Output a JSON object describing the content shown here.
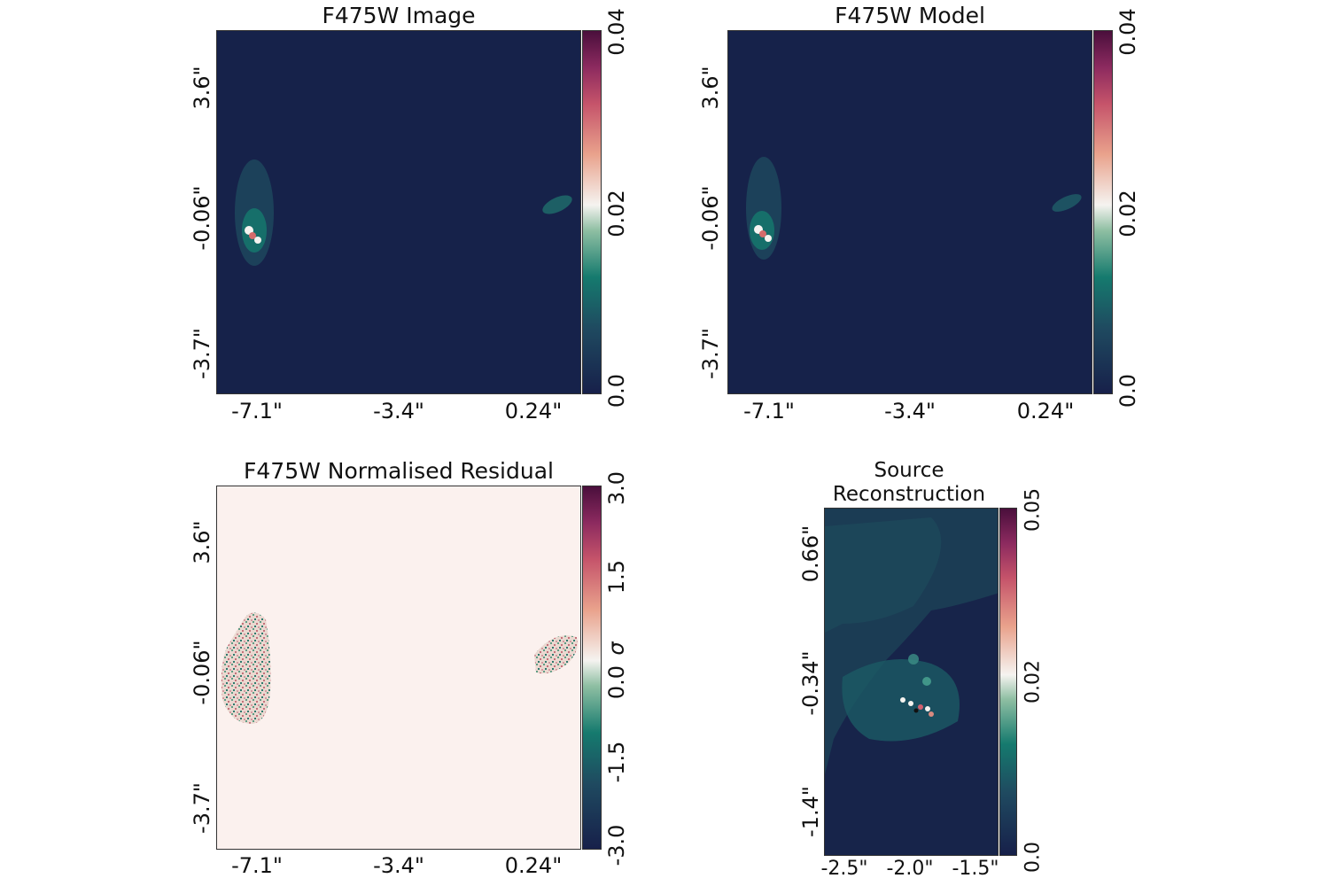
{
  "chart_data": [
    {
      "type": "heatmap",
      "title": "F475W Image",
      "x_ticks": [
        "-7.1\"",
        "-3.4\"",
        "0.24\""
      ],
      "y_ticks": [
        "3.6\"",
        "-0.06\"",
        "-3.7\""
      ],
      "colorbar_ticks": [
        "0.04",
        "0.02",
        "0.0"
      ],
      "colorbar_range": [
        0.0,
        0.04
      ],
      "background": "#16224a"
    },
    {
      "type": "heatmap",
      "title": "F475W Model",
      "x_ticks": [
        "-7.1\"",
        "-3.4\"",
        "0.24\""
      ],
      "y_ticks": [
        "3.6\"",
        "-0.06\"",
        "-3.7\""
      ],
      "colorbar_ticks": [
        "0.04",
        "0.02",
        "0.0"
      ],
      "colorbar_range": [
        0.0,
        0.04
      ],
      "background": "#16224a"
    },
    {
      "type": "heatmap",
      "title": "F475W Normalised Residual",
      "x_ticks": [
        "-7.1\"",
        "-3.4\"",
        "0.24\""
      ],
      "y_ticks": [
        "3.6\"",
        "-0.06\"",
        "-3.7\""
      ],
      "colorbar_ticks": [
        "3.0",
        "1.5",
        "0.0",
        "-1.5",
        "-3.0"
      ],
      "colorbar_unit": "σ",
      "colorbar_range": [
        -3.0,
        3.0
      ],
      "background": "#fbf1ee"
    },
    {
      "type": "heatmap",
      "title": "Source Reconstruction",
      "x_ticks": [
        "-2.5\"",
        "-2.0\"",
        "-1.5\""
      ],
      "y_ticks": [
        "0.66\"",
        "-0.34\"",
        "-1.4\""
      ],
      "colorbar_ticks": [
        "0.05",
        "0.02",
        "0.0"
      ],
      "colorbar_range": [
        0.0,
        0.05
      ],
      "background": "#17244a"
    }
  ]
}
